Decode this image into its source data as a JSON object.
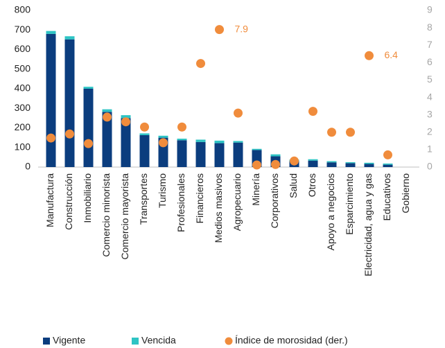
{
  "chart_data": {
    "type": "bar",
    "stacked": true,
    "categories": [
      "Manufactura",
      "Construcción",
      "Inmobiliario",
      "Comercio minorista",
      "Comercio mayorista",
      "Transportes",
      "Turismo",
      "Profesionales",
      "Financieros",
      "Medios masivos",
      "Agropecuario",
      "Minería",
      "Corporativos",
      "Salud",
      "Otros",
      "Apoyo a negocios",
      "Esparcimiento",
      "Electricidad, agua y gas",
      "Educativos",
      "Gobierno"
    ],
    "series": [
      {
        "name": "Vigente",
        "color": "#0b3d7e",
        "values": [
          680,
          652,
          400,
          282,
          250,
          163,
          150,
          137,
          128,
          122,
          125,
          87,
          55,
          30,
          33,
          24,
          20,
          16,
          12,
          0
        ]
      },
      {
        "name": "Vencida",
        "color": "#2ec4c4",
        "values": [
          15,
          16,
          10,
          13,
          15,
          9,
          10,
          8,
          12,
          13,
          8,
          6,
          10,
          8,
          7,
          6,
          5,
          6,
          6,
          0
        ]
      },
      {
        "name": "Índice de morosidad (der.)",
        "color": "#f08c3c",
        "type": "scatter",
        "axis": "y2",
        "values": [
          1.67,
          1.9,
          1.35,
          2.87,
          2.6,
          2.3,
          1.4,
          2.3,
          5.95,
          7.9,
          3.1,
          0.12,
          0.15,
          0.35,
          3.2,
          2.0,
          2.0,
          6.4,
          0.7,
          null
        ],
        "value_labels": [
          null,
          null,
          null,
          null,
          null,
          null,
          null,
          null,
          null,
          "7.9",
          null,
          null,
          null,
          null,
          null,
          null,
          null,
          "6.4",
          null,
          null
        ]
      }
    ],
    "ylim": [
      0,
      800
    ],
    "yticks": [
      0,
      100,
      200,
      300,
      400,
      500,
      600,
      700,
      800
    ],
    "y2lim": [
      0,
      9
    ],
    "y2ticks": [
      0,
      1,
      2,
      3,
      4,
      5,
      6,
      7,
      8,
      9
    ],
    "grid": false,
    "legend": "bottom"
  }
}
